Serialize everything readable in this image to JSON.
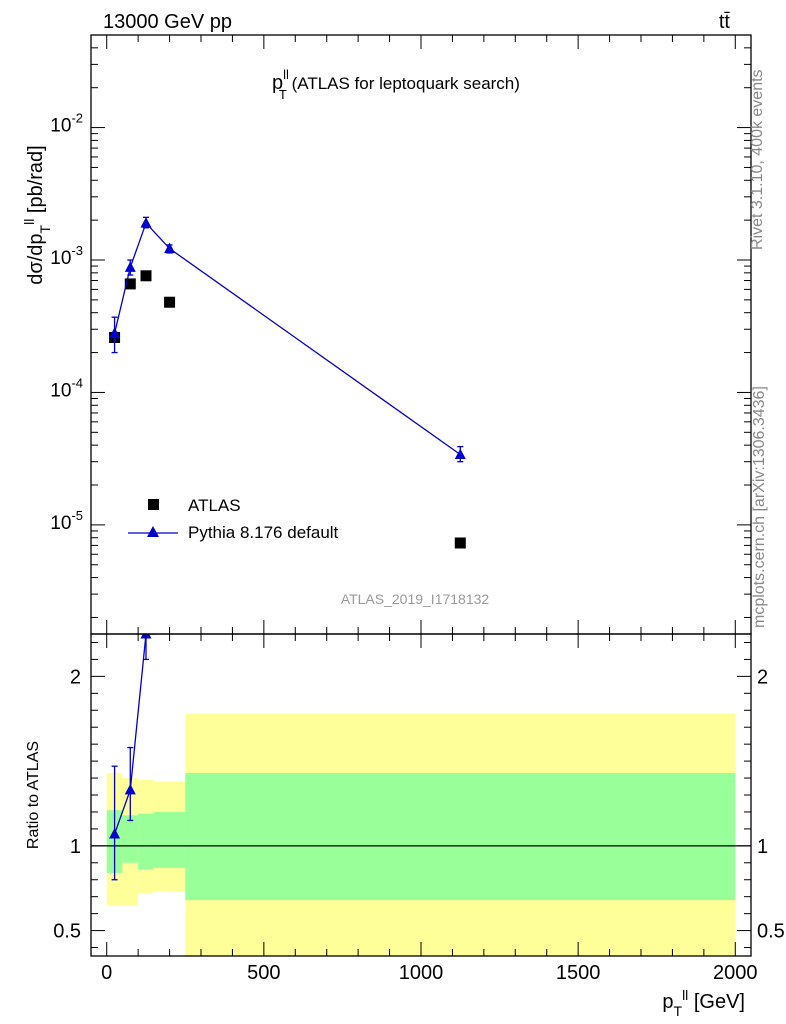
{
  "header": {
    "energy_label": "13000 GeV pp",
    "process_label": "tt̄",
    "plot_title": "p",
    "plot_title_sup": "ll",
    "plot_title_sub": "T",
    "plot_title_rest": " (ATLAS for leptoquark search)",
    "analysis_id": "ATLAS_2019_I1718132",
    "side_label_rivet": "Rivet 3.1.10,  400k events",
    "side_label_mcplots": "mcplots.cern.ch [arXiv:1306.3436]"
  },
  "colors": {
    "atlas": "#000000",
    "pythia": "#0000cc",
    "band_inner": "#99ff99",
    "band_outer": "#ffff99",
    "side_text": "#888888"
  },
  "chart_data": [
    {
      "type": "scatter",
      "title": "p_T^ll (ATLAS for leptoquark search)",
      "ylabel": "dσ/dp_T^ll [pb/rad]",
      "yscale": "log",
      "ylim": [
        1.5e-06,
        0.05
      ],
      "xlim": [
        -50,
        2050
      ],
      "ytick_labels": [
        "10^-5",
        "10^-4",
        "10^-3",
        "10^-2"
      ],
      "legend": {
        "placement": "lower-left",
        "entries": [
          "ATLAS",
          "Pythia 8.176 default"
        ]
      },
      "series": [
        {
          "name": "ATLAS",
          "marker": "square",
          "points": [
            {
              "x": 25,
              "y": 0.00026
            },
            {
              "x": 75,
              "y": 0.00066
            },
            {
              "x": 125,
              "y": 0.00076
            },
            {
              "x": 200,
              "y": 0.00048
            },
            {
              "x": 1125,
              "y": 7.3e-06
            }
          ]
        },
        {
          "name": "Pythia 8.176 default",
          "marker": "triangle",
          "line": true,
          "points": [
            {
              "x": 25,
              "y": 0.00028,
              "ylo": 0.0002,
              "yhi": 0.00037
            },
            {
              "x": 75,
              "y": 0.00088,
              "ylo": 0.00077,
              "yhi": 0.001
            },
            {
              "x": 125,
              "y": 0.0019,
              "ylo": 0.00175,
              "yhi": 0.0021
            },
            {
              "x": 200,
              "y": 0.00122,
              "ylo": 0.00113,
              "yhi": 0.0013
            },
            {
              "x": 1125,
              "y": 3.4e-05,
              "ylo": 3e-05,
              "yhi": 3.9e-05
            }
          ]
        }
      ]
    },
    {
      "type": "line",
      "ylabel": "Ratio to ATLAS",
      "xlabel": "p_T^ll [GeV]",
      "ylim": [
        0.35,
        2.25
      ],
      "xlim": [
        -50,
        2050
      ],
      "xtick_labels": [
        "0",
        "500",
        "1000",
        "1500",
        "2000"
      ],
      "ytick_labels": [
        "0.5",
        "1",
        "2"
      ],
      "reference_line": 1,
      "bands": [
        {
          "x0": 0,
          "x1": 50,
          "inner": [
            0.84,
            1.21
          ],
          "outer": [
            0.65,
            1.43
          ]
        },
        {
          "x0": 50,
          "x1": 100,
          "inner": [
            0.9,
            1.18
          ],
          "outer": [
            0.65,
            1.4
          ]
        },
        {
          "x0": 100,
          "x1": 150,
          "inner": [
            0.86,
            1.19
          ],
          "outer": [
            0.72,
            1.39
          ]
        },
        {
          "x0": 150,
          "x1": 250,
          "inner": [
            0.87,
            1.2
          ],
          "outer": [
            0.73,
            1.38
          ]
        },
        {
          "x0": 250,
          "x1": 2000,
          "inner": [
            0.68,
            1.43
          ],
          "outer": [
            0.35,
            1.78
          ]
        }
      ],
      "series": [
        {
          "name": "Pythia 8.176 default",
          "points": [
            {
              "x": 25,
              "y": 1.07,
              "ylo": 0.8,
              "yhi": 1.47
            },
            {
              "x": 75,
              "y": 1.33,
              "ylo": 1.15,
              "yhi": 1.58
            },
            {
              "x": 125,
              "y": 2.25,
              "ylo": 2.1,
              "yhi": 2.25
            },
            {
              "x": 160,
              "y": 2.25
            }
          ]
        }
      ]
    }
  ]
}
